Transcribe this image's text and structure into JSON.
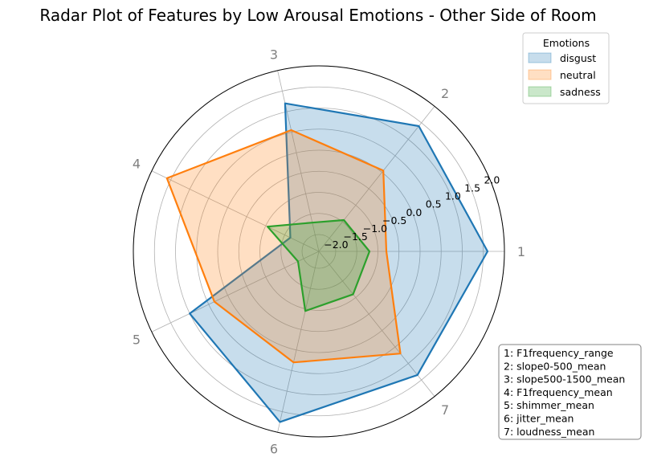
{
  "chart_data": {
    "type": "radar",
    "title": "Radar Plot of Features by Low Arousal Emotions - Other Side of Room",
    "axes": [
      "1",
      "2",
      "3",
      "4",
      "5",
      "6",
      "7"
    ],
    "radial_ticks": [
      "−2.0",
      "−1.5",
      "−1.0",
      "−0.5",
      "0.0",
      "0.5",
      "1.0",
      "1.5",
      "2.0"
    ],
    "rlim": [
      -2.4,
      2.0
    ],
    "grid": true,
    "legend": {
      "title": "Emotions",
      "placement": "top-right"
    },
    "series": [
      {
        "name": "disgust",
        "color": "#1f77b4",
        "values": [
          1.6,
          1.4,
          1.2,
          -1.65,
          1.0,
          1.75,
          1.35
        ]
      },
      {
        "name": "neutral",
        "color": "#ff7f0e",
        "values": [
          -0.8,
          0.05,
          0.55,
          1.6,
          0.35,
          0.3,
          0.7
        ]
      },
      {
        "name": "sadness",
        "color": "#2ca02c",
        "values": [
          -1.2,
          -1.45,
          -1.7,
          -1.05,
          -1.85,
          -0.95,
          -1.1
        ]
      }
    ],
    "feature_key": [
      "1: F1frequency_range",
      "2: slope0-500_mean",
      "3: slope500-1500_mean",
      "4: F1frequency_mean",
      "5: shimmer_mean",
      "6: jitter_mean",
      "7: loudness_mean"
    ]
  }
}
